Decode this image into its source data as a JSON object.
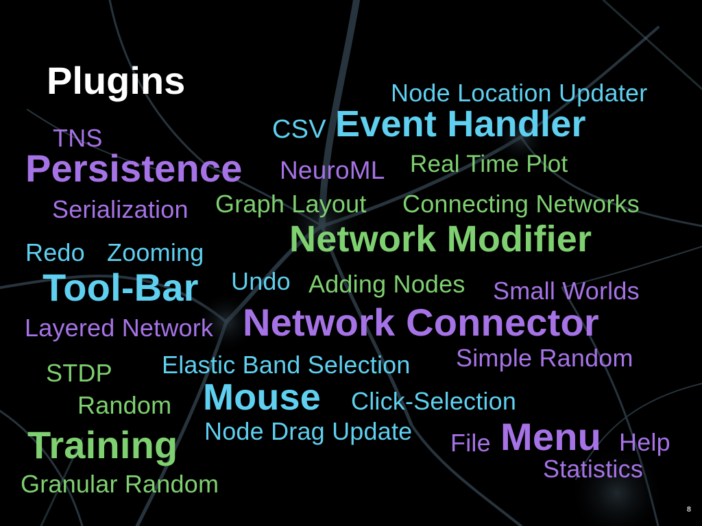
{
  "slide": {
    "title": "Plugins",
    "page_number": "8"
  },
  "words": {
    "node_location_updater": "Node Location Updater",
    "csv": "CSV",
    "event_handler": "Event Handler",
    "tns": "TNS",
    "persistence": "Persistence",
    "neuroml": "NeuroML",
    "real_time_plot": "Real Time Plot",
    "serialization": "Serialization",
    "graph_layout": "Graph Layout",
    "connecting_networks": "Connecting Networks",
    "network_modifier": "Network Modifier",
    "redo": "Redo",
    "zooming": "Zooming",
    "tool_bar": "Tool-Bar",
    "undo": "Undo",
    "adding_nodes": "Adding Nodes",
    "small_worlds": "Small Worlds",
    "layered_network": "Layered Network",
    "network_connector": "Network Connector",
    "simple_random": "Simple Random",
    "stdp": "STDP",
    "elastic_band_selection": "Elastic Band Selection",
    "random": "Random",
    "mouse": "Mouse",
    "click_selection": "Click-Selection",
    "training": "Training",
    "node_drag_update": "Node Drag Update",
    "file": "File",
    "menu": "Menu",
    "help": "Help",
    "statistics": "Statistics",
    "granular_random": "Granular Random"
  },
  "colors": {
    "background": "#000000",
    "title": "#ffffff",
    "cyan": "#5fd0f0",
    "purple": "#a673e6",
    "green": "#7fd070"
  }
}
